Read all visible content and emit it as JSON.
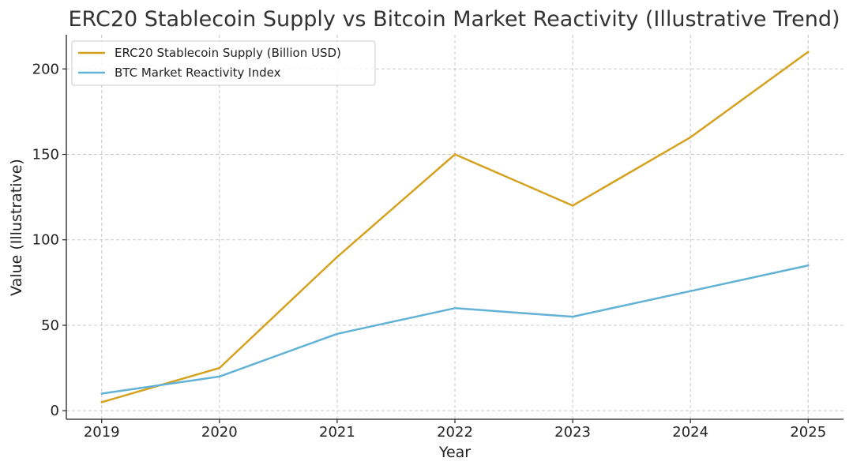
{
  "chart_data": {
    "type": "line",
    "title": "ERC20 Stablecoin Supply vs Bitcoin Market Reactivity (Illustrative Trend)",
    "xlabel": "Year",
    "ylabel": "Value (Illustrative)",
    "x": [
      2019,
      2020,
      2021,
      2022,
      2023,
      2024,
      2025
    ],
    "xlim": [
      2018.7,
      2025.3
    ],
    "ylim": [
      -5,
      220
    ],
    "yticks": [
      0,
      50,
      100,
      150,
      200
    ],
    "grid": true,
    "legend_position": "top-left",
    "series": [
      {
        "name": "ERC20 Stablecoin Supply (Billion USD)",
        "color": "#D4A21F",
        "values": [
          5,
          25,
          90,
          150,
          120,
          160,
          210
        ]
      },
      {
        "name": "BTC Market Reactivity Index",
        "color": "#62B2D6",
        "values": [
          10,
          20,
          45,
          60,
          55,
          70,
          85
        ]
      }
    ]
  }
}
